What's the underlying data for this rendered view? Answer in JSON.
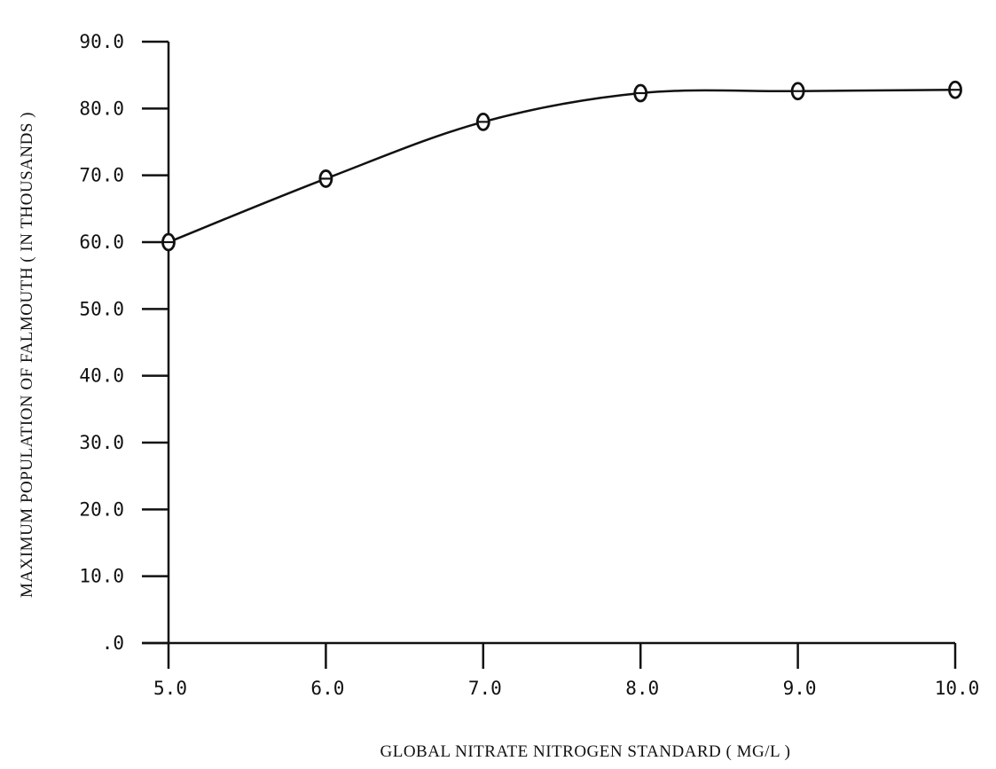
{
  "chart_data": {
    "type": "line",
    "xlabel": "GLOBAL NITRATE NITROGEN STANDARD   ( MG/L )",
    "ylabel": "MAXIMUM POPULATION OF FALMOUTH   ( IN THOUSANDS )",
    "xlim": [
      5.0,
      10.0
    ],
    "ylim": [
      0.0,
      90.0
    ],
    "x_ticks": [
      5.0,
      6.0,
      7.0,
      8.0,
      9.0,
      10.0
    ],
    "x_tick_labels": [
      "5.0",
      "6.0",
      "7.0",
      "8.0",
      "9.0",
      "10.0"
    ],
    "y_ticks": [
      0,
      10,
      20,
      30,
      40,
      50,
      60,
      70,
      80,
      90
    ],
    "y_tick_labels": [
      ".0",
      "10.0",
      "20.0",
      "30.0",
      "40.0",
      "50.0",
      "60.0",
      "70.0",
      "80.0",
      "90.0"
    ],
    "grid": false,
    "marker": "circle-with-bar",
    "series": [
      {
        "x": [
          5.0,
          6.0,
          7.0,
          8.0,
          9.0,
          10.0
        ],
        "y": [
          60.0,
          69.5,
          78.0,
          82.3,
          82.6,
          82.8
        ]
      }
    ]
  }
}
